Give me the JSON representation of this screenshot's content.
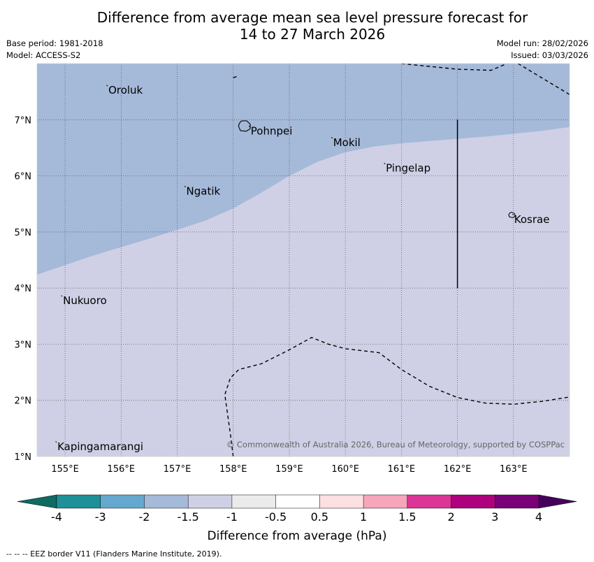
{
  "header": {
    "title_line1": "Difference from average mean sea level pressure forecast for",
    "title_line2": "14 to 27 March 2026",
    "base_period": "Base period: 1981-2018",
    "model": "Model: ACCESS-S2",
    "model_run": "Model run: 28/02/2026",
    "issued": "Issued: 03/03/2026"
  },
  "map": {
    "lon_range": [
      154.5,
      164.0
    ],
    "lat_range": [
      1.0,
      8.0
    ],
    "lon_ticks": [
      155,
      156,
      157,
      158,
      159,
      160,
      161,
      162,
      163
    ],
    "lat_ticks": [
      1,
      2,
      3,
      4,
      5,
      6,
      7
    ],
    "lon_tick_labels": [
      "155°E",
      "156°E",
      "157°E",
      "158°E",
      "159°E",
      "160°E",
      "161°E",
      "162°E",
      "163°E"
    ],
    "lat_tick_labels": [
      "1°N",
      "2°N",
      "3°N",
      "4°N",
      "5°N",
      "6°N",
      "7°N"
    ],
    "places": [
      {
        "name": "Oroluk",
        "lon": 155.76,
        "lat": 7.6
      },
      {
        "name": "Pohnpei",
        "lon": 158.3,
        "lat": 6.87
      },
      {
        "name": "Mokil",
        "lon": 159.77,
        "lat": 6.67
      },
      {
        "name": "Pingelap",
        "lon": 160.71,
        "lat": 6.21
      },
      {
        "name": "Ngatik",
        "lon": 157.15,
        "lat": 5.8
      },
      {
        "name": "Kosrae",
        "lon": 163.0,
        "lat": 5.3
      },
      {
        "name": "Nukuoro",
        "lon": 154.95,
        "lat": 3.85
      },
      {
        "name": "Kapingamarangi",
        "lon": 154.85,
        "lat": 1.25
      }
    ],
    "anomaly_regions": [
      {
        "category": "-2 to -1.5 hPa",
        "color": "#a5b9d9"
      },
      {
        "category": "-1.5 to -1 hPa",
        "color": "#cfd0e5"
      }
    ],
    "boundary_lon_lat": [
      [
        154.5,
        4.24
      ],
      [
        155.5,
        4.58
      ],
      [
        156.5,
        4.88
      ],
      [
        157.5,
        5.2
      ],
      [
        158.0,
        5.42
      ],
      [
        158.5,
        5.7
      ],
      [
        159.0,
        6.0
      ],
      [
        159.5,
        6.25
      ],
      [
        160.0,
        6.42
      ],
      [
        160.5,
        6.52
      ],
      [
        161.0,
        6.58
      ],
      [
        161.5,
        6.62
      ],
      [
        162.0,
        6.66
      ],
      [
        162.5,
        6.7
      ],
      [
        163.0,
        6.75
      ],
      [
        163.5,
        6.8
      ],
      [
        164.0,
        6.87
      ]
    ],
    "eez_lines": [
      [
        [
          158.0,
          7.75
        ],
        [
          158.1,
          7.78
        ]
      ],
      [
        [
          161.0,
          8.0
        ],
        [
          161.5,
          7.95
        ],
        [
          162.0,
          7.9
        ],
        [
          162.6,
          7.88
        ],
        [
          163.0,
          8.05
        ],
        [
          163.5,
          7.75
        ],
        [
          164.0,
          7.45
        ]
      ],
      [
        [
          158.0,
          1.0
        ],
        [
          157.95,
          1.4
        ],
        [
          157.9,
          1.75
        ],
        [
          157.85,
          2.1
        ],
        [
          157.95,
          2.4
        ],
        [
          158.1,
          2.55
        ],
        [
          158.5,
          2.65
        ],
        [
          159.0,
          2.9
        ],
        [
          159.4,
          3.12
        ],
        [
          159.7,
          3.0
        ],
        [
          160.0,
          2.92
        ],
        [
          160.6,
          2.85
        ],
        [
          161.0,
          2.55
        ],
        [
          161.5,
          2.25
        ],
        [
          162.0,
          2.05
        ],
        [
          162.5,
          1.95
        ],
        [
          163.0,
          1.93
        ],
        [
          163.5,
          1.98
        ],
        [
          164.0,
          2.06
        ]
      ]
    ],
    "straight_line": [
      [
        162.0,
        7.0
      ],
      [
        162.0,
        4.0
      ]
    ],
    "copyright": "© Commonwealth of Australia 2026, Bureau of Meteorology, supported by COSPPac"
  },
  "colorbar": {
    "title": "Difference from average (hPa)",
    "labels": [
      "-4",
      "-3",
      "-2",
      "-1.5",
      "-1",
      "-0.5",
      "0.5",
      "1",
      "1.5",
      "2",
      "3",
      "4"
    ],
    "under_color": "#0f6a62",
    "over_color": "#45005c",
    "colors": [
      "#1e9099",
      "#64a8cf",
      "#a5b9d9",
      "#cfd0e5",
      "#ebebeb",
      "#ffffff",
      "#fde0e1",
      "#f7a5bb",
      "#dd3497",
      "#ae017e",
      "#7a0177"
    ]
  },
  "footer": "--  --  -- EEZ border V11 (Flanders Marine Institute, 2019)."
}
